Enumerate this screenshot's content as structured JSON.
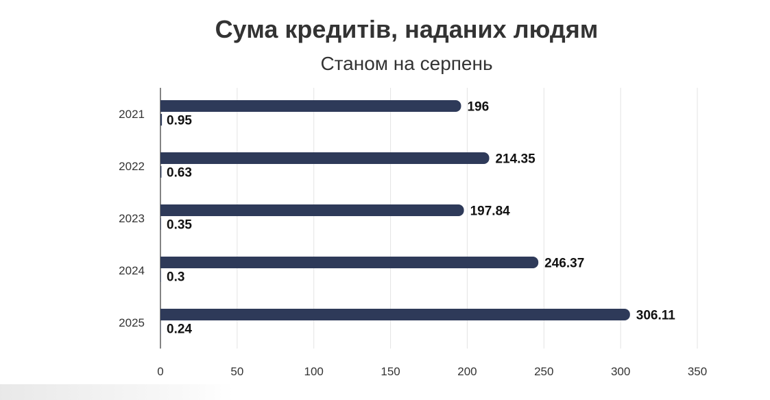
{
  "chart_data": {
    "type": "bar",
    "orientation": "horizontal",
    "title": "Сума кредитів, наданих людям",
    "subtitle": "Станом на серпень",
    "categories": [
      "2021",
      "2022",
      "2023",
      "2024",
      "2025"
    ],
    "series": [
      {
        "values": [
          196,
          214.35,
          197.84,
          246.37,
          306.11
        ],
        "color": "#2e3a59"
      },
      {
        "values": [
          0.95,
          0.63,
          0.35,
          0.3,
          0.24
        ],
        "color": "#2e3a59"
      }
    ],
    "value_labels": [
      [
        "196",
        "214.35",
        "197.84",
        "246.37",
        "306.11"
      ],
      [
        "0.95",
        "0.63",
        "0.35",
        "0.3",
        "0.24"
      ]
    ],
    "xlim": [
      0,
      350
    ],
    "xticks": [
      "0",
      "50",
      "100",
      "150",
      "200",
      "250",
      "300",
      "350"
    ],
    "grid": true,
    "legend": "none"
  }
}
